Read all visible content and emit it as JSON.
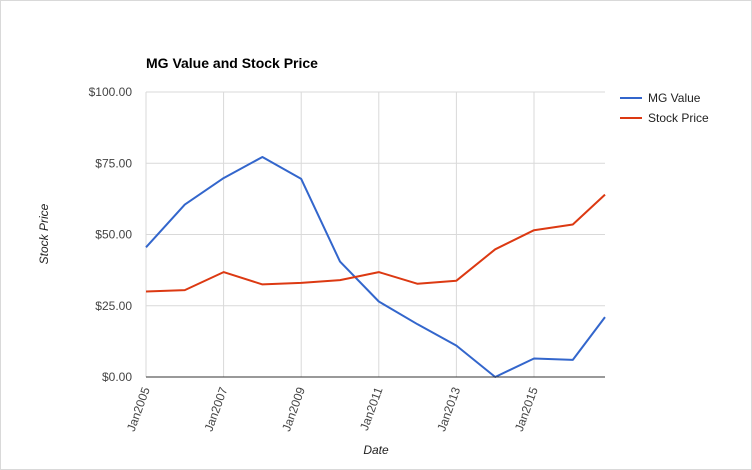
{
  "chart_data": {
    "type": "line",
    "title": "MG Value and Stock Price",
    "xlabel": "Date",
    "ylabel": "Stock Price",
    "x": [
      2005,
      2006,
      2007,
      2008,
      2009,
      2010,
      2011,
      2012,
      2013,
      2014,
      2015,
      2016,
      2016.83
    ],
    "x_ticks": [
      {
        "value": 2005,
        "label": "Jan2005"
      },
      {
        "value": 2007,
        "label": "Jan2007"
      },
      {
        "value": 2009,
        "label": "Jan2009"
      },
      {
        "value": 2011,
        "label": "Jan2011"
      },
      {
        "value": 2013,
        "label": "Jan2013"
      },
      {
        "value": 2015,
        "label": "Jan2015"
      }
    ],
    "y_ticks": [
      "$0.00",
      "$25.00",
      "$50.00",
      "$75.00",
      "$100.00"
    ],
    "y_tick_values": [
      0,
      25,
      50,
      75,
      100
    ],
    "ylim": [
      0,
      100
    ],
    "xlim": [
      2005,
      2016.83
    ],
    "grid": true,
    "legend_position": "right",
    "series": [
      {
        "name": "MG Value",
        "color": "#3366cc",
        "values": [
          45.5,
          60.5,
          69.8,
          77.2,
          69.5,
          40.5,
          26.5,
          18.5,
          11.0,
          0.0,
          6.5,
          6.0,
          21.0
        ]
      },
      {
        "name": "Stock Price",
        "color": "#dc3912",
        "values": [
          30.0,
          30.5,
          36.8,
          32.5,
          33.0,
          34.0,
          36.8,
          32.7,
          33.8,
          44.8,
          51.5,
          53.5,
          64.0
        ]
      }
    ]
  }
}
